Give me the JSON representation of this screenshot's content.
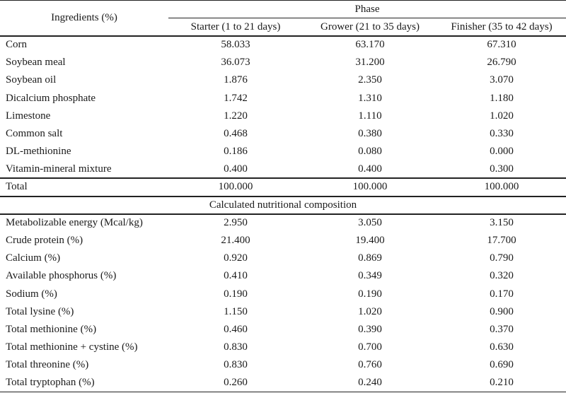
{
  "header": {
    "ingredients_label": "Ingredients (%)",
    "phase_label": "Phase",
    "columns": [
      "Starter (1 to 21 days)",
      "Grower (21 to 35 days)",
      "Finisher (35 to 42 days)"
    ]
  },
  "ingredients": [
    {
      "name": "Corn",
      "values": [
        "58.033",
        "63.170",
        "67.310"
      ]
    },
    {
      "name": "Soybean meal",
      "values": [
        "36.073",
        "31.200",
        "26.790"
      ]
    },
    {
      "name": "Soybean oil",
      "values": [
        "1.876",
        "2.350",
        "3.070"
      ]
    },
    {
      "name": "Dicalcium phosphate",
      "values": [
        "1.742",
        "1.310",
        "1.180"
      ]
    },
    {
      "name": "Limestone",
      "values": [
        "1.220",
        "1.110",
        "1.020"
      ]
    },
    {
      "name": "Common salt",
      "values": [
        "0.468",
        "0.380",
        "0.330"
      ]
    },
    {
      "name": "DL-methionine",
      "values": [
        "0.186",
        "0.080",
        "0.000"
      ]
    },
    {
      "name": "Vitamin-mineral mixture",
      "values": [
        "0.400",
        "0.400",
        "0.300"
      ]
    }
  ],
  "total": {
    "name": "Total",
    "values": [
      "100.000",
      "100.000",
      "100.000"
    ]
  },
  "section_title": "Calculated nutritional composition",
  "nutrition": [
    {
      "name": "Metabolizable energy (Mcal/kg)",
      "values": [
        "2.950",
        "3.050",
        "3.150"
      ]
    },
    {
      "name": "Crude protein (%)",
      "values": [
        "21.400",
        "19.400",
        "17.700"
      ]
    },
    {
      "name": "Calcium (%)",
      "values": [
        "0.920",
        "0.869",
        "0.790"
      ]
    },
    {
      "name": "Available phosphorus (%)",
      "values": [
        "0.410",
        "0.349",
        "0.320"
      ]
    },
    {
      "name": "Sodium (%)",
      "values": [
        "0.190",
        "0.190",
        "0.170"
      ]
    },
    {
      "name": "Total lysine (%)",
      "values": [
        "1.150",
        "1.020",
        "0.900"
      ]
    },
    {
      "name": "Total methionine (%)",
      "values": [
        "0.460",
        "0.390",
        "0.370"
      ]
    },
    {
      "name": "Total methionine + cystine (%)",
      "values": [
        "0.830",
        "0.700",
        "0.630"
      ]
    },
    {
      "name": "Total threonine (%)",
      "values": [
        "0.830",
        "0.760",
        "0.690"
      ]
    },
    {
      "name": "Total tryptophan (%)",
      "values": [
        "0.260",
        "0.240",
        "0.210"
      ]
    }
  ]
}
